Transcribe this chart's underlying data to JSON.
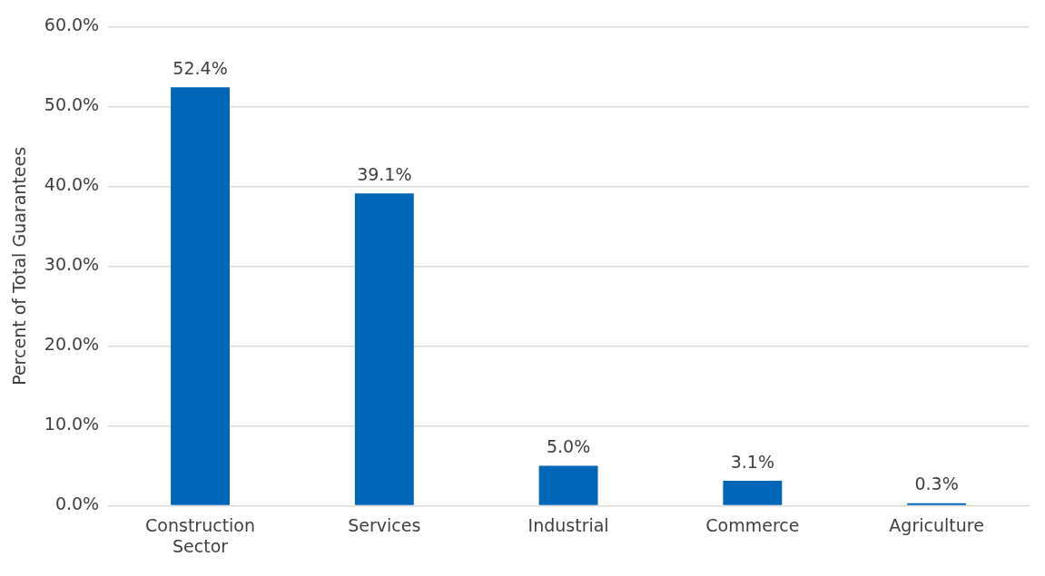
{
  "chart_data": {
    "type": "bar",
    "ylabel": "Percent of Total Guarantees",
    "categories": [
      "Construction Sector",
      "Services",
      "Industrial",
      "Commerce",
      "Agriculture"
    ],
    "values": [
      52.4,
      39.1,
      5.0,
      3.1,
      0.3
    ],
    "value_labels": [
      "52.4%",
      "39.1%",
      "5.0%",
      "3.1%",
      "0.3%"
    ],
    "color": "#0066b8",
    "ylim": [
      0,
      60
    ],
    "yticks": [
      {
        "value": 0,
        "label": "0.0%"
      },
      {
        "value": 10,
        "label": "10.0%"
      },
      {
        "value": 20,
        "label": "20.0%"
      },
      {
        "value": 30,
        "label": "30.0%"
      },
      {
        "value": 40,
        "label": "40.0%"
      },
      {
        "value": 50,
        "label": "50.0%"
      },
      {
        "value": 60,
        "label": "60.0%"
      }
    ],
    "grid": "y",
    "legend": false
  }
}
